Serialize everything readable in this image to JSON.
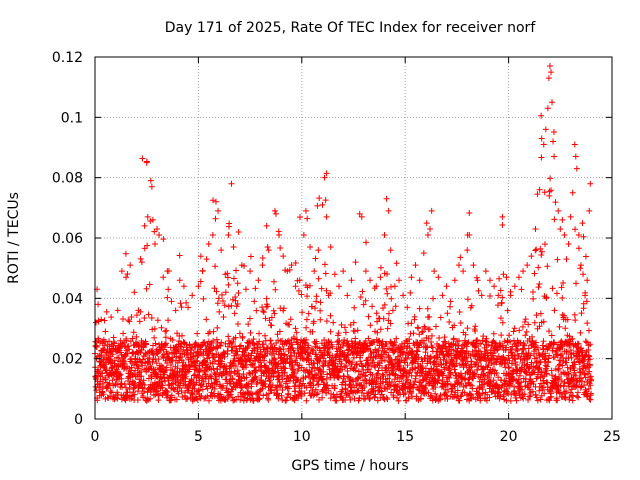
{
  "chart_data": {
    "type": "scatter",
    "title": "Day 171 of 2025, Rate Of TEC Index for receiver norf",
    "xlabel": "GPS time / hours",
    "ylabel": "ROTI / TECUs",
    "xlim": [
      0,
      25
    ],
    "ylim": [
      0,
      0.12
    ],
    "xticks": [
      0,
      5,
      10,
      15,
      20,
      25
    ],
    "yticks": [
      0,
      0.02,
      0.04,
      0.06,
      0.08,
      0.1,
      0.12
    ],
    "xtick_labels": [
      "0",
      "5",
      "10",
      "15",
      "20",
      "25"
    ],
    "ytick_labels": [
      "0",
      "0.02",
      "0.04",
      "0.06",
      "0.08",
      "0.1",
      "0.12"
    ],
    "grid": true,
    "marker": "+",
    "series_color": "#ff0000",
    "series": [
      {
        "name": "ROTI",
        "points": [
          [
            0.05,
            0.032
          ],
          [
            0.1,
            0.043
          ],
          [
            0.15,
            0.038
          ],
          [
            0.3,
            0.033
          ],
          [
            0.5,
            0.029
          ],
          [
            0.7,
            0.024
          ],
          [
            0.9,
            0.027
          ],
          [
            1.1,
            0.036
          ],
          [
            1.3,
            0.049
          ],
          [
            1.5,
            0.047
          ],
          [
            1.7,
            0.051
          ],
          [
            1.9,
            0.042
          ],
          [
            2.1,
            0.036
          ],
          [
            2.4,
            0.064
          ],
          [
            2.5,
            0.085
          ],
          [
            2.55,
            0.067
          ],
          [
            2.7,
            0.079
          ],
          [
            2.75,
            0.077
          ],
          [
            2.8,
            0.066
          ],
          [
            2.9,
            0.058
          ],
          [
            3.0,
            0.063
          ],
          [
            3.1,
            0.061
          ],
          [
            3.3,
            0.047
          ],
          [
            3.5,
            0.049
          ],
          [
            3.7,
            0.039
          ],
          [
            3.9,
            0.036
          ],
          [
            4.1,
            0.046
          ],
          [
            4.3,
            0.044
          ],
          [
            4.5,
            0.037
          ],
          [
            4.7,
            0.041
          ],
          [
            5.0,
            0.044
          ],
          [
            5.2,
            0.049
          ],
          [
            5.4,
            0.053
          ],
          [
            5.5,
            0.058
          ],
          [
            5.7,
            0.061
          ],
          [
            5.85,
            0.072
          ],
          [
            5.95,
            0.069
          ],
          [
            6.1,
            0.056
          ],
          [
            6.3,
            0.048
          ],
          [
            6.45,
            0.061
          ],
          [
            6.6,
            0.078
          ],
          [
            6.7,
            0.057
          ],
          [
            6.9,
            0.045
          ],
          [
            7.1,
            0.051
          ],
          [
            7.3,
            0.043
          ],
          [
            7.5,
            0.049
          ],
          [
            7.7,
            0.039
          ],
          [
            7.9,
            0.046
          ],
          [
            8.1,
            0.051
          ],
          [
            8.3,
            0.064
          ],
          [
            8.4,
            0.056
          ],
          [
            8.7,
            0.069
          ],
          [
            8.75,
            0.068
          ],
          [
            8.9,
            0.061
          ],
          [
            9.1,
            0.054
          ],
          [
            9.3,
            0.049
          ],
          [
            9.5,
            0.051
          ],
          [
            9.7,
            0.044
          ],
          [
            9.9,
            0.046
          ],
          [
            10.1,
            0.061
          ],
          [
            10.2,
            0.069
          ],
          [
            10.4,
            0.057
          ],
          [
            10.6,
            0.049
          ],
          [
            10.8,
            0.056
          ],
          [
            11.0,
            0.071
          ],
          [
            11.1,
            0.08
          ],
          [
            11.2,
            0.067
          ],
          [
            11.4,
            0.057
          ],
          [
            11.6,
            0.048
          ],
          [
            11.8,
            0.044
          ],
          [
            12.0,
            0.049
          ],
          [
            12.2,
            0.041
          ],
          [
            12.4,
            0.046
          ],
          [
            12.6,
            0.052
          ],
          [
            12.8,
            0.068
          ],
          [
            12.9,
            0.067
          ],
          [
            13.1,
            0.049
          ],
          [
            13.3,
            0.046
          ],
          [
            13.6,
            0.044
          ],
          [
            13.8,
            0.047
          ],
          [
            14.0,
            0.061
          ],
          [
            14.1,
            0.073
          ],
          [
            14.2,
            0.069
          ],
          [
            14.3,
            0.056
          ],
          [
            14.5,
            0.044
          ],
          [
            14.7,
            0.046
          ],
          [
            14.9,
            0.041
          ],
          [
            15.1,
            0.037
          ],
          [
            15.3,
            0.047
          ],
          [
            15.5,
            0.051
          ],
          [
            15.7,
            0.046
          ],
          [
            15.9,
            0.055
          ],
          [
            16.1,
            0.061
          ],
          [
            16.2,
            0.063
          ],
          [
            16.4,
            0.049
          ],
          [
            16.6,
            0.047
          ],
          [
            16.8,
            0.041
          ],
          [
            17.0,
            0.044
          ],
          [
            17.2,
            0.039
          ],
          [
            17.4,
            0.046
          ],
          [
            17.6,
            0.051
          ],
          [
            17.8,
            0.049
          ],
          [
            18.0,
            0.056
          ],
          [
            18.1,
            0.061
          ],
          [
            18.3,
            0.051
          ],
          [
            18.5,
            0.046
          ],
          [
            18.7,
            0.041
          ],
          [
            18.9,
            0.049
          ],
          [
            19.1,
            0.046
          ],
          [
            19.3,
            0.044
          ],
          [
            19.5,
            0.041
          ],
          [
            19.7,
            0.067
          ],
          [
            19.75,
            0.048
          ],
          [
            19.9,
            0.047
          ],
          [
            20.1,
            0.041
          ],
          [
            20.3,
            0.044
          ],
          [
            20.5,
            0.047
          ],
          [
            20.7,
            0.049
          ],
          [
            20.9,
            0.051
          ],
          [
            21.1,
            0.054
          ],
          [
            21.3,
            0.063
          ],
          [
            21.5,
            0.076
          ],
          [
            21.6,
            0.093
          ],
          [
            21.7,
            0.091
          ],
          [
            21.8,
            0.096
          ],
          [
            21.9,
            0.103
          ],
          [
            21.95,
            0.113
          ],
          [
            22.0,
            0.117
          ],
          [
            22.05,
            0.115
          ],
          [
            22.1,
            0.105
          ],
          [
            22.15,
            0.092
          ],
          [
            22.2,
            0.087
          ],
          [
            22.4,
            0.069
          ],
          [
            22.5,
            0.063
          ],
          [
            22.6,
            0.066
          ],
          [
            22.7,
            0.061
          ],
          [
            22.8,
            0.053
          ],
          [
            22.9,
            0.058
          ],
          [
            23.0,
            0.067
          ],
          [
            23.1,
            0.075
          ],
          [
            23.2,
            0.091
          ],
          [
            23.25,
            0.087
          ],
          [
            23.3,
            0.083
          ],
          [
            23.4,
            0.061
          ],
          [
            23.5,
            0.051
          ],
          [
            23.6,
            0.048
          ],
          [
            23.7,
            0.041
          ],
          [
            23.8,
            0.046
          ],
          [
            23.9,
            0.069
          ],
          [
            23.95,
            0.078
          ]
        ]
      }
    ]
  }
}
